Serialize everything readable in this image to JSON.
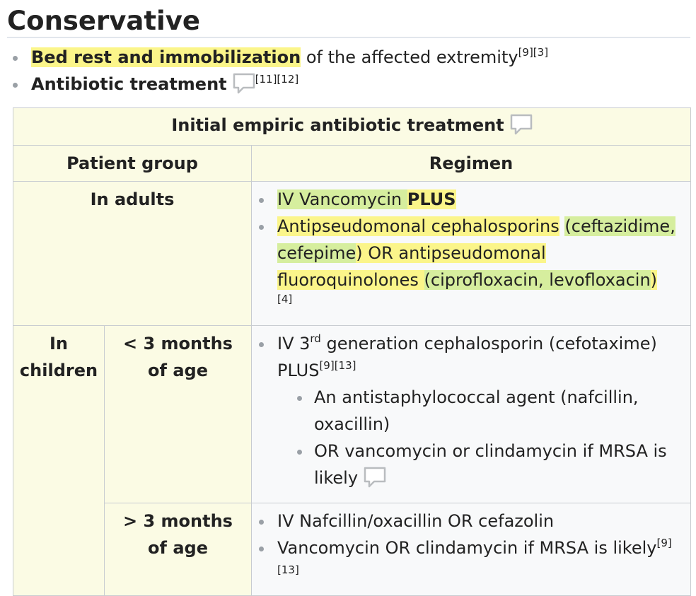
{
  "section": {
    "title": "Conservative"
  },
  "bullets": [
    {
      "highlight": "Bed rest and immobilization",
      "text": " of the affected extremity",
      "refs": "[9][3]"
    },
    {
      "label": "Antibiotic treatment",
      "refs": "[11][12]",
      "icon": "comment-icon"
    }
  ],
  "table": {
    "caption": "Initial empiric antibiotic treatment",
    "caption_icon": "comment-icon",
    "headers": {
      "group": "Patient group",
      "regimen": "Regimen"
    },
    "adults": {
      "group": "In adults",
      "item1": {
        "hl": "IV Vancomycin",
        "plus": "PLUS"
      },
      "item2": {
        "hl1": "Antipseudomonal cephalosporins",
        "paren1": "(ceftazidime, cefepime",
        "mid1": ")",
        "mid2": " OR antipseudomonal fluoroquinolones ",
        "paren2": "(ciprofloxacin, levofloxacin",
        "end": ")"
      },
      "ref": "[4]"
    },
    "children": {
      "group": "In children",
      "under3": {
        "label": "< 3 months of age",
        "item1_a": "IV 3",
        "item1_sup": "rd",
        "item1_b": " generation cephalosporin (cefotaxime) PLUS",
        "item1_refs": "[9][13]",
        "sub1": "An antistaphylococcal agent (nafcillin, oxacillin)",
        "sub2": "OR vancomycin or clindamycin if MRSA is likely",
        "sub2_icon": "comment-icon"
      },
      "over3": {
        "label": "> 3 months of age",
        "item1": "IV Nafcillin/oxacillin OR cefazolin",
        "item2": "Vancomycin OR clindamycin if MRSA is likely",
        "item2_refs": "[9][13]"
      }
    }
  },
  "colors": {
    "highlight_yellow": "#fbf58a",
    "highlight_green": "#d6ee9e",
    "header_bg": "#fbfbe4",
    "cell_bg": "#f8f9fa"
  }
}
